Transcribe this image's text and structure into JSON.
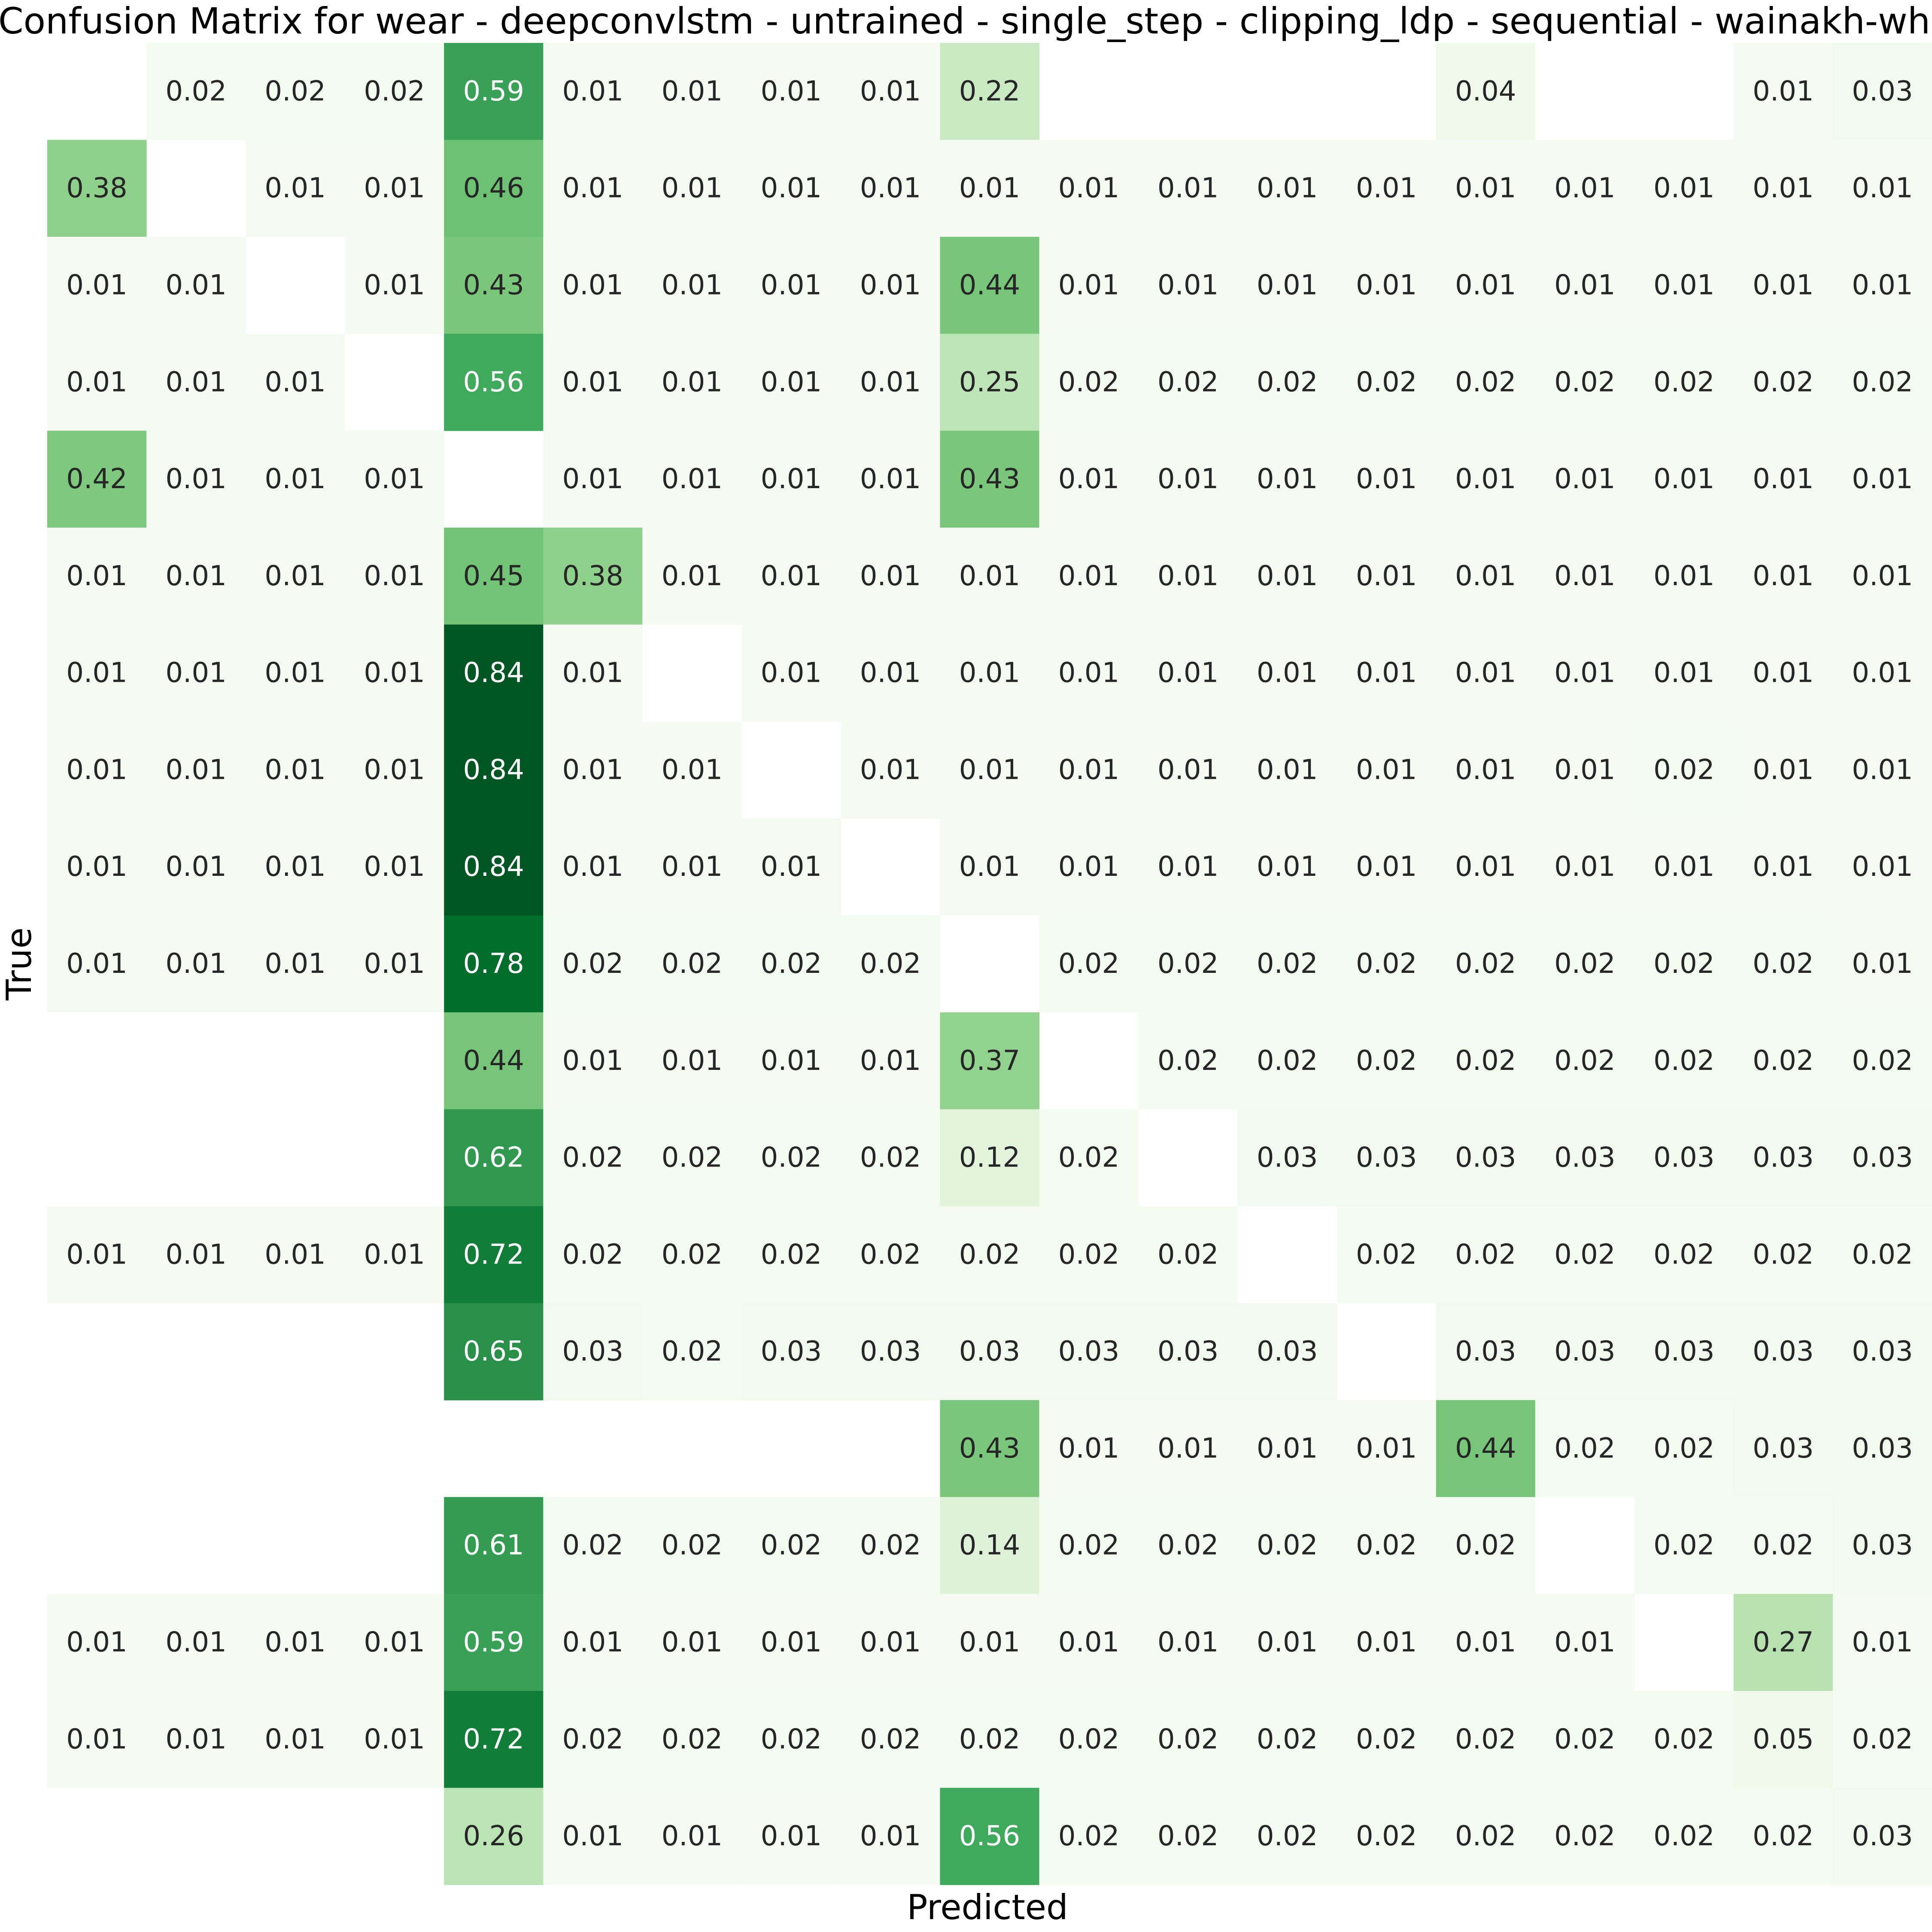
{
  "chart_data": {
    "type": "heatmap",
    "title": "Confusion Matrix for wear - deepconvlstm - untrained - single_step - clipping_ldp - sequential - wainakh-white",
    "xlabel": "Predicted",
    "ylabel": "True",
    "colormap": "Greens",
    "color_low": "#f7fcf5",
    "color_high": "#00441b",
    "value_range": [
      0,
      0.89
    ],
    "rows": 19,
    "cols": 19,
    "values": [
      [
        null,
        0.02,
        0.02,
        0.02,
        0.59,
        0.01,
        0.01,
        0.01,
        0.01,
        0.22,
        null,
        null,
        null,
        null,
        0.04,
        null,
        null,
        0.01,
        0.03
      ],
      [
        0.38,
        null,
        0.01,
        0.01,
        0.46,
        0.01,
        0.01,
        0.01,
        0.01,
        0.01,
        0.01,
        0.01,
        0.01,
        0.01,
        0.01,
        0.01,
        0.01,
        0.01,
        0.01
      ],
      [
        0.01,
        0.01,
        null,
        0.01,
        0.43,
        0.01,
        0.01,
        0.01,
        0.01,
        0.44,
        0.01,
        0.01,
        0.01,
        0.01,
        0.01,
        0.01,
        0.01,
        0.01,
        0.01
      ],
      [
        0.01,
        0.01,
        0.01,
        null,
        0.56,
        0.01,
        0.01,
        0.01,
        0.01,
        0.25,
        0.02,
        0.02,
        0.02,
        0.02,
        0.02,
        0.02,
        0.02,
        0.02,
        0.02
      ],
      [
        0.42,
        0.01,
        0.01,
        0.01,
        null,
        0.01,
        0.01,
        0.01,
        0.01,
        0.43,
        0.01,
        0.01,
        0.01,
        0.01,
        0.01,
        0.01,
        0.01,
        0.01,
        0.01
      ],
      [
        0.01,
        0.01,
        0.01,
        0.01,
        0.45,
        0.38,
        0.01,
        0.01,
        0.01,
        0.01,
        0.01,
        0.01,
        0.01,
        0.01,
        0.01,
        0.01,
        0.01,
        0.01,
        0.01
      ],
      [
        0.01,
        0.01,
        0.01,
        0.01,
        0.84,
        0.01,
        null,
        0.01,
        0.01,
        0.01,
        0.01,
        0.01,
        0.01,
        0.01,
        0.01,
        0.01,
        0.01,
        0.01,
        0.01
      ],
      [
        0.01,
        0.01,
        0.01,
        0.01,
        0.84,
        0.01,
        0.01,
        null,
        0.01,
        0.01,
        0.01,
        0.01,
        0.01,
        0.01,
        0.01,
        0.01,
        0.02,
        0.01,
        0.01
      ],
      [
        0.01,
        0.01,
        0.01,
        0.01,
        0.84,
        0.01,
        0.01,
        0.01,
        null,
        0.01,
        0.01,
        0.01,
        0.01,
        0.01,
        0.01,
        0.01,
        0.01,
        0.01,
        0.01
      ],
      [
        0.01,
        0.01,
        0.01,
        0.01,
        0.78,
        0.02,
        0.02,
        0.02,
        0.02,
        null,
        0.02,
        0.02,
        0.02,
        0.02,
        0.02,
        0.02,
        0.02,
        0.02,
        0.01
      ],
      [
        null,
        null,
        null,
        null,
        0.44,
        0.01,
        0.01,
        0.01,
        0.01,
        0.37,
        null,
        0.02,
        0.02,
        0.02,
        0.02,
        0.02,
        0.02,
        0.02,
        0.02
      ],
      [
        null,
        null,
        null,
        null,
        0.62,
        0.02,
        0.02,
        0.02,
        0.02,
        0.12,
        0.02,
        null,
        0.03,
        0.03,
        0.03,
        0.03,
        0.03,
        0.03,
        0.03
      ],
      [
        0.01,
        0.01,
        0.01,
        0.01,
        0.72,
        0.02,
        0.02,
        0.02,
        0.02,
        0.02,
        0.02,
        0.02,
        null,
        0.02,
        0.02,
        0.02,
        0.02,
        0.02,
        0.02
      ],
      [
        null,
        null,
        null,
        null,
        0.65,
        0.03,
        0.02,
        0.03,
        0.03,
        0.03,
        0.03,
        0.03,
        0.03,
        null,
        0.03,
        0.03,
        0.03,
        0.03,
        0.03
      ],
      [
        null,
        null,
        null,
        null,
        null,
        null,
        null,
        null,
        null,
        0.43,
        0.01,
        0.01,
        0.01,
        0.01,
        0.44,
        0.02,
        0.02,
        0.03,
        0.03
      ],
      [
        null,
        null,
        null,
        null,
        0.61,
        0.02,
        0.02,
        0.02,
        0.02,
        0.14,
        0.02,
        0.02,
        0.02,
        0.02,
        0.02,
        null,
        0.02,
        0.02,
        0.03
      ],
      [
        0.01,
        0.01,
        0.01,
        0.01,
        0.59,
        0.01,
        0.01,
        0.01,
        0.01,
        0.01,
        0.01,
        0.01,
        0.01,
        0.01,
        0.01,
        0.01,
        null,
        0.27,
        0.01
      ],
      [
        0.01,
        0.01,
        0.01,
        0.01,
        0.72,
        0.02,
        0.02,
        0.02,
        0.02,
        0.02,
        0.02,
        0.02,
        0.02,
        0.02,
        0.02,
        0.02,
        0.02,
        0.05,
        0.02
      ],
      [
        null,
        null,
        null,
        null,
        0.26,
        0.01,
        0.01,
        0.01,
        0.01,
        0.56,
        0.02,
        0.02,
        0.02,
        0.02,
        0.02,
        0.02,
        0.02,
        0.02,
        0.03
      ]
    ],
    "grid": false,
    "legend": "none"
  }
}
